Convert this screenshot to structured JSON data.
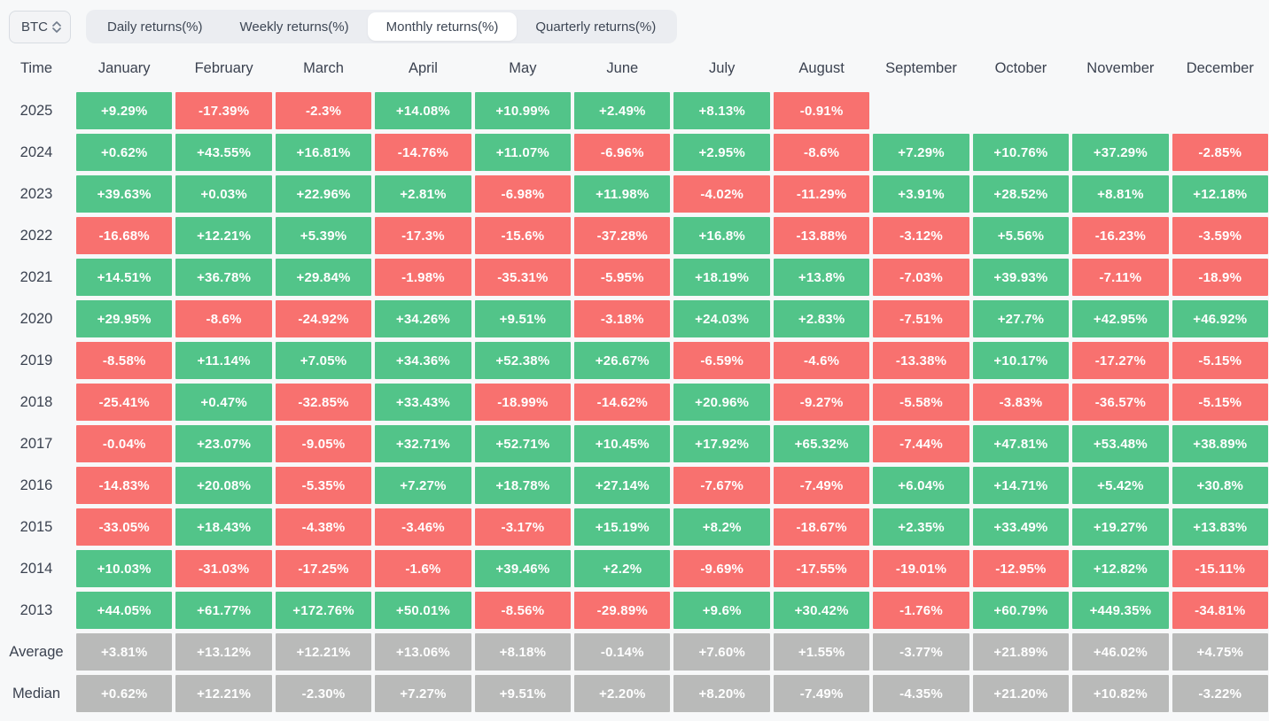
{
  "controls": {
    "symbol": "BTC",
    "tabs": [
      {
        "label": "Daily returns(%)",
        "active": false
      },
      {
        "label": "Weekly returns(%)",
        "active": false
      },
      {
        "label": "Monthly returns(%)",
        "active": true
      },
      {
        "label": "Quarterly returns(%)",
        "active": false
      }
    ]
  },
  "colors": {
    "positive": "#52c489",
    "negative": "#f8716f",
    "summary": "#b9bab9"
  },
  "table": {
    "time_header": "Time",
    "months": [
      "January",
      "February",
      "March",
      "April",
      "May",
      "June",
      "July",
      "August",
      "September",
      "October",
      "November",
      "December"
    ],
    "rows": [
      {
        "label": "2025",
        "type": "year",
        "values": [
          "+9.29%",
          "-17.39%",
          "-2.3%",
          "+14.08%",
          "+10.99%",
          "+2.49%",
          "+8.13%",
          "-0.91%",
          null,
          null,
          null,
          null
        ]
      },
      {
        "label": "2024",
        "type": "year",
        "values": [
          "+0.62%",
          "+43.55%",
          "+16.81%",
          "-14.76%",
          "+11.07%",
          "-6.96%",
          "+2.95%",
          "-8.6%",
          "+7.29%",
          "+10.76%",
          "+37.29%",
          "-2.85%"
        ]
      },
      {
        "label": "2023",
        "type": "year",
        "values": [
          "+39.63%",
          "+0.03%",
          "+22.96%",
          "+2.81%",
          "-6.98%",
          "+11.98%",
          "-4.02%",
          "-11.29%",
          "+3.91%",
          "+28.52%",
          "+8.81%",
          "+12.18%"
        ]
      },
      {
        "label": "2022",
        "type": "year",
        "values": [
          "-16.68%",
          "+12.21%",
          "+5.39%",
          "-17.3%",
          "-15.6%",
          "-37.28%",
          "+16.8%",
          "-13.88%",
          "-3.12%",
          "+5.56%",
          "-16.23%",
          "-3.59%"
        ]
      },
      {
        "label": "2021",
        "type": "year",
        "values": [
          "+14.51%",
          "+36.78%",
          "+29.84%",
          "-1.98%",
          "-35.31%",
          "-5.95%",
          "+18.19%",
          "+13.8%",
          "-7.03%",
          "+39.93%",
          "-7.11%",
          "-18.9%"
        ]
      },
      {
        "label": "2020",
        "type": "year",
        "values": [
          "+29.95%",
          "-8.6%",
          "-24.92%",
          "+34.26%",
          "+9.51%",
          "-3.18%",
          "+24.03%",
          "+2.83%",
          "-7.51%",
          "+27.7%",
          "+42.95%",
          "+46.92%"
        ]
      },
      {
        "label": "2019",
        "type": "year",
        "values": [
          "-8.58%",
          "+11.14%",
          "+7.05%",
          "+34.36%",
          "+52.38%",
          "+26.67%",
          "-6.59%",
          "-4.6%",
          "-13.38%",
          "+10.17%",
          "-17.27%",
          "-5.15%"
        ]
      },
      {
        "label": "2018",
        "type": "year",
        "values": [
          "-25.41%",
          "+0.47%",
          "-32.85%",
          "+33.43%",
          "-18.99%",
          "-14.62%",
          "+20.96%",
          "-9.27%",
          "-5.58%",
          "-3.83%",
          "-36.57%",
          "-5.15%"
        ]
      },
      {
        "label": "2017",
        "type": "year",
        "values": [
          "-0.04%",
          "+23.07%",
          "-9.05%",
          "+32.71%",
          "+52.71%",
          "+10.45%",
          "+17.92%",
          "+65.32%",
          "-7.44%",
          "+47.81%",
          "+53.48%",
          "+38.89%"
        ]
      },
      {
        "label": "2016",
        "type": "year",
        "values": [
          "-14.83%",
          "+20.08%",
          "-5.35%",
          "+7.27%",
          "+18.78%",
          "+27.14%",
          "-7.67%",
          "-7.49%",
          "+6.04%",
          "+14.71%",
          "+5.42%",
          "+30.8%"
        ]
      },
      {
        "label": "2015",
        "type": "year",
        "values": [
          "-33.05%",
          "+18.43%",
          "-4.38%",
          "-3.46%",
          "-3.17%",
          "+15.19%",
          "+8.2%",
          "-18.67%",
          "+2.35%",
          "+33.49%",
          "+19.27%",
          "+13.83%"
        ]
      },
      {
        "label": "2014",
        "type": "year",
        "values": [
          "+10.03%",
          "-31.03%",
          "-17.25%",
          "-1.6%",
          "+39.46%",
          "+2.2%",
          "-9.69%",
          "-17.55%",
          "-19.01%",
          "-12.95%",
          "+12.82%",
          "-15.11%"
        ]
      },
      {
        "label": "2013",
        "type": "year",
        "values": [
          "+44.05%",
          "+61.77%",
          "+172.76%",
          "+50.01%",
          "-8.56%",
          "-29.89%",
          "+9.6%",
          "+30.42%",
          "-1.76%",
          "+60.79%",
          "+449.35%",
          "-34.81%"
        ]
      },
      {
        "label": "Average",
        "type": "summary",
        "values": [
          "+3.81%",
          "+13.12%",
          "+12.21%",
          "+13.06%",
          "+8.18%",
          "-0.14%",
          "+7.60%",
          "+1.55%",
          "-3.77%",
          "+21.89%",
          "+46.02%",
          "+4.75%"
        ]
      },
      {
        "label": "Median",
        "type": "summary",
        "values": [
          "+0.62%",
          "+12.21%",
          "-2.30%",
          "+7.27%",
          "+9.51%",
          "+2.20%",
          "+8.20%",
          "-7.49%",
          "-4.35%",
          "+21.20%",
          "+10.82%",
          "-3.22%"
        ]
      }
    ]
  }
}
